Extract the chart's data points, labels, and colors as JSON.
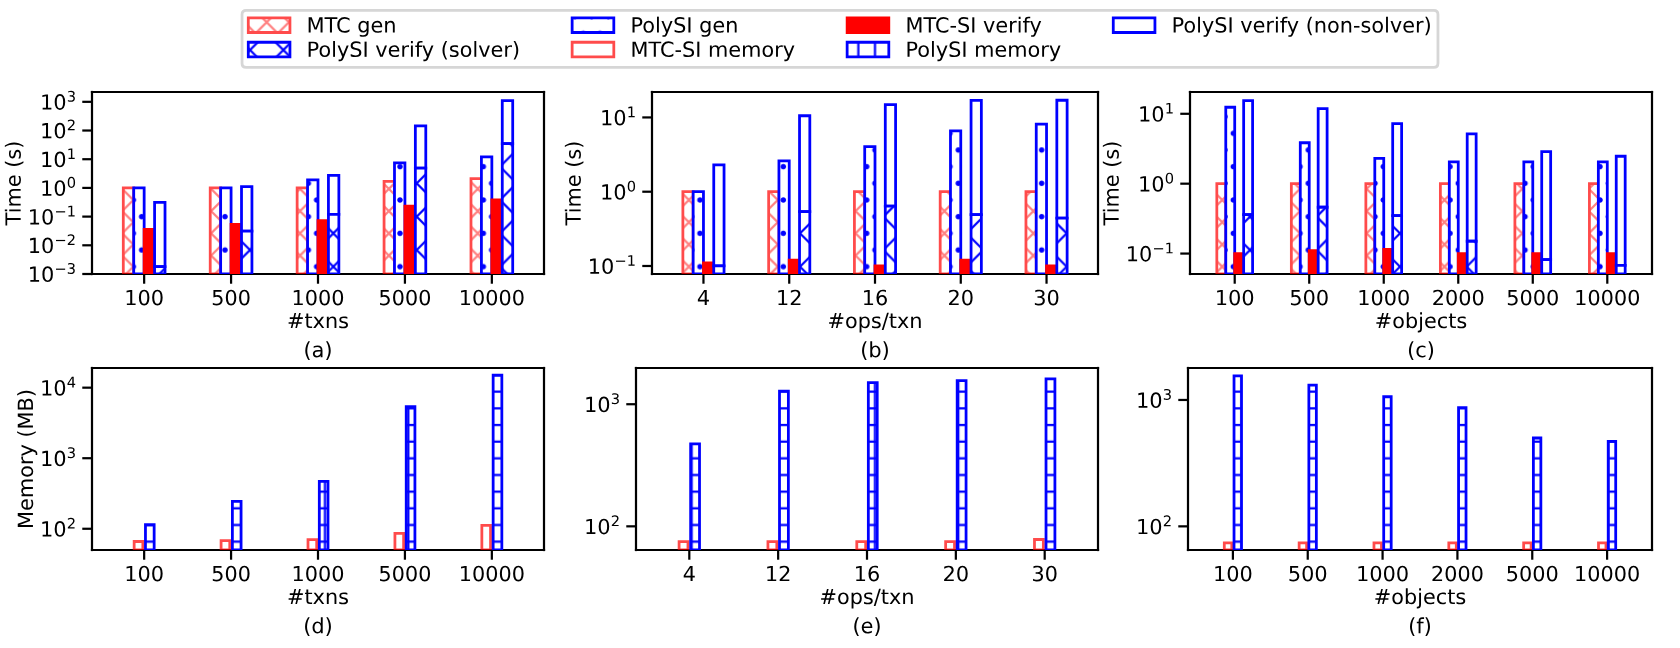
{
  "chart_data": [
    {
      "type": "bar",
      "categories": [
        "100",
        "500",
        "1000",
        "5000",
        "10000"
      ],
      "xlabel": "#txns",
      "ylabel": "Time (s)",
      "annotations": [
        "(a)"
      ],
      "log": "y",
      "legend": "top",
      "ylim": [
        0.001,
        2200
      ],
      "yticks": [
        {
          "value": 0.001,
          "label": "10$^{−3}$"
        },
        {
          "value": 0.01,
          "label": "10$^{−2}$"
        },
        {
          "value": 0.1,
          "label": "10$^{−1}$"
        },
        {
          "value": 1,
          "label": "10$^{0}$"
        },
        {
          "value": 10,
          "label": "10$^{1}$"
        },
        {
          "value": 100,
          "label": "10$^{2}$"
        },
        {
          "value": 1000,
          "label": "10$^{3}$"
        }
      ],
      "series": [
        {
          "name": "MTC gen",
          "color": "#ff0000",
          "values": [
            1,
            1,
            1,
            1.7,
            2.1
          ]
        },
        {
          "name": "PolySI gen",
          "color": "#0000ff",
          "values": [
            1,
            1,
            1.9,
            7.5,
            12
          ]
        },
        {
          "name": "MTC-SI verify",
          "color": "#ff0000",
          "values": [
            0.036,
            0.054,
            0.072,
            0.23,
            0.38
          ]
        },
        {
          "name": "PolySI verify (non-solver)",
          "color": "#0000ff",
          "base": [
            0.0018,
            0.031,
            0.12,
            4.9,
            35
          ],
          "values": [
            0.31,
            1.07,
            2.6,
            140,
            1060
          ]
        },
        {
          "name": "PolySI verify (solver)",
          "color": "#0000ff",
          "values": [
            0.0018,
            0.031,
            0.12,
            4.9,
            35
          ]
        }
      ]
    },
    {
      "type": "bar",
      "categories": [
        "4",
        "12",
        "16",
        "20",
        "30"
      ],
      "xlabel": "#ops/txn",
      "ylabel": "Time (s)",
      "annotations": [
        "(b)"
      ],
      "log": "y",
      "ylim": [
        0.078,
        22
      ],
      "yticks": [
        {
          "value": 0.1,
          "label": "10$^{−1}$"
        },
        {
          "value": 1,
          "label": "10$^{0}$"
        },
        {
          "value": 10,
          "label": "10$^{1}$"
        }
      ],
      "series": [
        {
          "color": "#ff0000",
          "values": [
            1,
            1,
            1,
            1,
            1
          ]
        },
        {
          "color": "#0000ff",
          "values": [
            1,
            2.6,
            4.05,
            6.6,
            8.1
          ]
        },
        {
          "color": "#ff0000",
          "values": [
            0.11,
            0.12,
            0.1,
            0.12,
            0.1
          ]
        },
        {
          "color": "#0000ff",
          "base": [
            0.1,
            0.54,
            0.64,
            0.49,
            0.44
          ],
          "values": [
            2.2,
            10,
            14.2,
            16.5,
            16.6
          ]
        },
        {
          "color": "#0000ff",
          "values": [
            0.1,
            0.54,
            0.64,
            0.49,
            0.44
          ]
        }
      ]
    },
    {
      "type": "bar",
      "categories": [
        "100",
        "500",
        "1000",
        "2000",
        "5000",
        "10000"
      ],
      "xlabel": "#objects",
      "ylabel": "Time (s)",
      "annotations": [
        "(c)"
      ],
      "log": "y",
      "ylim": [
        0.051,
        20.5
      ],
      "yticks": [
        {
          "value": 0.1,
          "label": "10$^{−1}$"
        },
        {
          "value": 1,
          "label": "10$^{0}$"
        },
        {
          "value": 10,
          "label": "10$^{1}$"
        }
      ],
      "series": [
        {
          "color": "#ff0000",
          "values": [
            1,
            1,
            1,
            1,
            1,
            1
          ]
        },
        {
          "color": "#0000ff",
          "values": [
            12.4,
            3.85,
            2.3,
            2.05,
            2.05,
            2.05
          ]
        },
        {
          "color": "#ff0000",
          "values": [
            0.1,
            0.11,
            0.115,
            0.1,
            0.1,
            0.1
          ]
        },
        {
          "color": "#0000ff",
          "base": [
            0.36,
            0.46,
            0.35,
            0.15,
            0.082,
            0.068
          ],
          "values": [
            15.1,
            11.4,
            6.9,
            5.0,
            2.8,
            2.4
          ]
        },
        {
          "color": "#0000ff",
          "values": [
            0.36,
            0.46,
            0.35,
            0.15,
            0.082,
            0.068
          ]
        }
      ]
    },
    {
      "type": "bar",
      "categories": [
        "100",
        "500",
        "1000",
        "5000",
        "10000"
      ],
      "xlabel": "#txns",
      "ylabel": "Memory (MB)",
      "annotations": [
        "(d)"
      ],
      "log": "y",
      "ylim": [
        50,
        19000
      ],
      "yticks": [
        {
          "value": 100,
          "label": "10$^{2}$"
        },
        {
          "value": 1000,
          "label": "10$^{3}$"
        },
        {
          "value": 10000,
          "label": "10$^{4}$"
        }
      ],
      "series": [
        {
          "name": "MTC-SI memory",
          "color": "#ff0000",
          "values": [
            66,
            68,
            70,
            86,
            112
          ]
        },
        {
          "name": "PolySI memory",
          "color": "#0000ff",
          "values": [
            114,
            244,
            470,
            5400,
            15000
          ]
        }
      ]
    },
    {
      "type": "bar",
      "categories": [
        "4",
        "12",
        "16",
        "20",
        "30"
      ],
      "xlabel": "#ops/txn",
      "annotations": [
        "(e)"
      ],
      "log": "y",
      "ylim": [
        64,
        1980
      ],
      "yticks": [
        {
          "value": 100,
          "label": "10$^{2}$"
        },
        {
          "value": 1000,
          "label": "10$^{3}$"
        }
      ],
      "series": [
        {
          "color": "#ff0000",
          "values": [
            75,
            75,
            75,
            75,
            78
          ]
        },
        {
          "color": "#0000ff",
          "values": [
            474,
            1280,
            1500,
            1560,
            1610
          ]
        }
      ]
    },
    {
      "type": "bar",
      "categories": [
        "100",
        "500",
        "1000",
        "2000",
        "5000",
        "10000"
      ],
      "xlabel": "#objects",
      "annotations": [
        "(f)"
      ],
      "log": "y",
      "ylim": [
        65,
        1790
      ],
      "yticks": [
        {
          "value": 100,
          "label": "10$^{2}$"
        },
        {
          "value": 1000,
          "label": "10$^{3}$"
        }
      ],
      "series": [
        {
          "color": "#ff0000",
          "values": [
            74,
            74,
            74,
            74,
            74,
            74
          ]
        },
        {
          "color": "#0000ff",
          "values": [
            1550,
            1310,
            1060,
            870,
            500,
            470
          ]
        }
      ]
    }
  ]
}
